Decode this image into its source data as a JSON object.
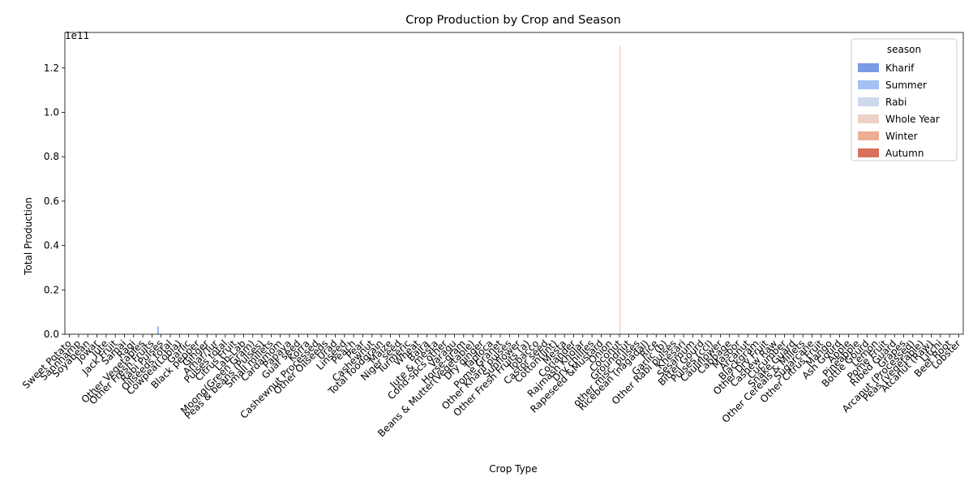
{
  "chart_data": {
    "type": "bar",
    "title": "Crop Production by Crop and Season",
    "xlabel": "Crop Type",
    "ylabel": "Total Production",
    "y_offset_label": "1e11",
    "ylim": [
      0,
      136000000000
    ],
    "y_ticks": [
      0,
      20000000000,
      40000000000,
      60000000000,
      80000000000,
      100000000000,
      120000000000
    ],
    "y_tick_labels": [
      "0.0",
      "0.2",
      "0.4",
      "0.6",
      "0.8",
      "1.0",
      "1.2"
    ],
    "grid": false,
    "legend": {
      "title": "season",
      "placement": "top-right",
      "entries": [
        {
          "name": "Kharif",
          "color": "#7b9ae6"
        },
        {
          "name": "Summer",
          "color": "#a2c0f2"
        },
        {
          "name": "Rabi",
          "color": "#cdd8ea"
        },
        {
          "name": "Whole Year",
          "color": "#ecd2c6"
        },
        {
          "name": "Winter",
          "color": "#eeae93"
        },
        {
          "name": "Autumn",
          "color": "#d9705b"
        }
      ]
    },
    "categories": [
      "Sweet Potato",
      "Sannhamp",
      "Soyabean",
      "Jowar",
      "Jute",
      "Jack Fruit",
      "Samai",
      "Ragi",
      "Other Vegetables",
      "Other Fresh Fruits",
      "Rabi Pulses",
      "Oilseeds total",
      "Cowpea(Lobia)",
      "Garlic",
      "Black pepper",
      "Ginger",
      "Arhar/Tur",
      "Pulses total",
      "Citrus Fruit",
      "Lab-Lab",
      "Moong(Green Gram)",
      "Peas & beans (Pulses)",
      "Small millets",
      "Cardamom",
      "Papaya",
      "Guar seed",
      "Korra",
      "Cashewnut Processed",
      "Other Oilseeds",
      "Urad",
      "Linseed",
      "Peach",
      "Pear",
      "Cashewnut",
      "Total foodgrain",
      "Maize",
      "Niger seed",
      "Turmeric",
      "Wheat",
      "Bajra",
      "Jute & mesta",
      "Cond-spcs other",
      "Varagu",
      "Horse-gram",
      "Beans & Mutter(Vegetable)",
      "Dry ginger",
      "Tapioca",
      "Pome Granet",
      "Other Kharif pulses",
      "Sunflower",
      "Other Fresh Fruits (a)",
      "Tobacco",
      "Castor seed",
      "Cotton(lint)",
      "Mesta",
      "Coriander",
      "Rajmash Kholar",
      "Dry chillies",
      "Rapeseed &Mustard",
      "Onion",
      "Coconut",
      "Groundnut",
      "other misc. pulses",
      "Ricebean (nagadal)",
      "Rice",
      "Garlic (b)",
      "Other Rabi pulses",
      "Khesari",
      "Sesamum",
      "Bitter Gourd",
      "Pulses (ccl)",
      "Cauliflower",
      "Cabbage",
      "Masoor",
      "Arcanut",
      "Blackgram",
      "Other Dry Fruit",
      "Cashew Raw",
      "Cucumber",
      "Snake Guard",
      "Other Cereals & Millets",
      "Sugarcane",
      "Other Citrus Fruit",
      "Mango",
      "Ash Gourd",
      "Apple",
      "Pineapple",
      "Bottle Gourd",
      "Lemon",
      "Pome Fruit",
      "Ribed Guard",
      "Grapes",
      "Arcanut (Processed)",
      "Peas (vegetable)",
      "Atcanut (Raw)",
      "Litchi",
      "Beet Root",
      "Lobster"
    ],
    "series": [
      {
        "name": "Whole Year",
        "values_by_category": {
          "Coconut": 130000000000,
          "Sugarcane": 200000000
        }
      },
      {
        "name": "Kharif",
        "values_by_category": {
          "Rabi Pulses": 3500000000,
          "Rice": 400000000
        }
      }
    ]
  }
}
